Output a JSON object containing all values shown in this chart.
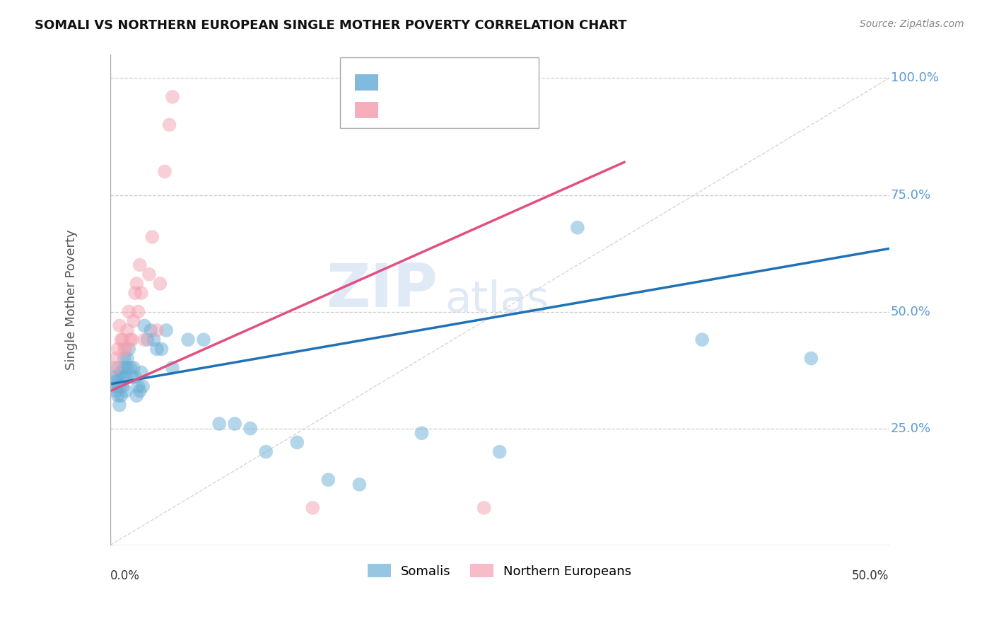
{
  "title": "SOMALI VS NORTHERN EUROPEAN SINGLE MOTHER POVERTY CORRELATION CHART",
  "source": "Source: ZipAtlas.com",
  "ylabel": "Single Mother Poverty",
  "yticks": [
    0.0,
    0.25,
    0.5,
    0.75,
    1.0
  ],
  "ytick_labels": [
    "",
    "25.0%",
    "50.0%",
    "75.0%",
    "100.0%"
  ],
  "xlim": [
    0.0,
    0.5
  ],
  "ylim": [
    0.0,
    1.05
  ],
  "somali_color": "#6baed6",
  "ne_color": "#f4a0b0",
  "trendline_somali_color": "#2171b5",
  "trendline_ne_color": "#e05080",
  "watermark_color": "#c8d8f0",
  "background_color": "#ffffff",
  "grid_color": "#cccccc",
  "axis_color": "#5b9bd5",
  "somali_x": [
    0.002,
    0.003,
    0.004,
    0.004,
    0.005,
    0.005,
    0.005,
    0.006,
    0.006,
    0.007,
    0.007,
    0.008,
    0.008,
    0.009,
    0.009,
    0.01,
    0.01,
    0.011,
    0.011,
    0.012,
    0.013,
    0.014,
    0.015,
    0.016,
    0.017,
    0.018,
    0.019,
    0.02,
    0.021,
    0.022,
    0.024,
    0.026,
    0.028,
    0.03,
    0.033,
    0.036,
    0.04,
    0.05,
    0.06,
    0.07,
    0.08,
    0.09,
    0.1,
    0.12,
    0.14,
    0.16,
    0.2,
    0.25,
    0.3,
    0.38,
    0.45
  ],
  "somali_y": [
    0.36,
    0.34,
    0.35,
    0.33,
    0.38,
    0.36,
    0.32,
    0.34,
    0.3,
    0.37,
    0.32,
    0.36,
    0.34,
    0.38,
    0.4,
    0.36,
    0.33,
    0.4,
    0.38,
    0.42,
    0.38,
    0.36,
    0.38,
    0.36,
    0.32,
    0.34,
    0.33,
    0.37,
    0.34,
    0.47,
    0.44,
    0.46,
    0.44,
    0.42,
    0.42,
    0.46,
    0.38,
    0.44,
    0.44,
    0.26,
    0.26,
    0.25,
    0.2,
    0.22,
    0.14,
    0.13,
    0.24,
    0.2,
    0.68,
    0.44,
    0.4
  ],
  "ne_x": [
    0.003,
    0.004,
    0.005,
    0.006,
    0.007,
    0.008,
    0.009,
    0.01,
    0.011,
    0.012,
    0.013,
    0.014,
    0.015,
    0.016,
    0.017,
    0.018,
    0.019,
    0.02,
    0.022,
    0.025,
    0.027,
    0.03,
    0.032,
    0.035,
    0.038,
    0.04,
    0.13,
    0.24
  ],
  "ne_y": [
    0.38,
    0.4,
    0.42,
    0.47,
    0.44,
    0.44,
    0.42,
    0.42,
    0.46,
    0.5,
    0.44,
    0.44,
    0.48,
    0.54,
    0.56,
    0.5,
    0.6,
    0.54,
    0.44,
    0.58,
    0.66,
    0.46,
    0.56,
    0.8,
    0.9,
    0.96,
    0.08,
    0.08
  ],
  "somali_trend_x0": 0.0,
  "somali_trend_y0": 0.345,
  "somali_trend_x1": 0.5,
  "somali_trend_y1": 0.635,
  "ne_trend_x0": 0.0,
  "ne_trend_y0": 0.33,
  "ne_trend_x1": 0.33,
  "ne_trend_y1": 0.82,
  "ref_line_x": [
    0.0,
    0.5
  ],
  "ref_line_y": [
    0.0,
    1.0
  ]
}
